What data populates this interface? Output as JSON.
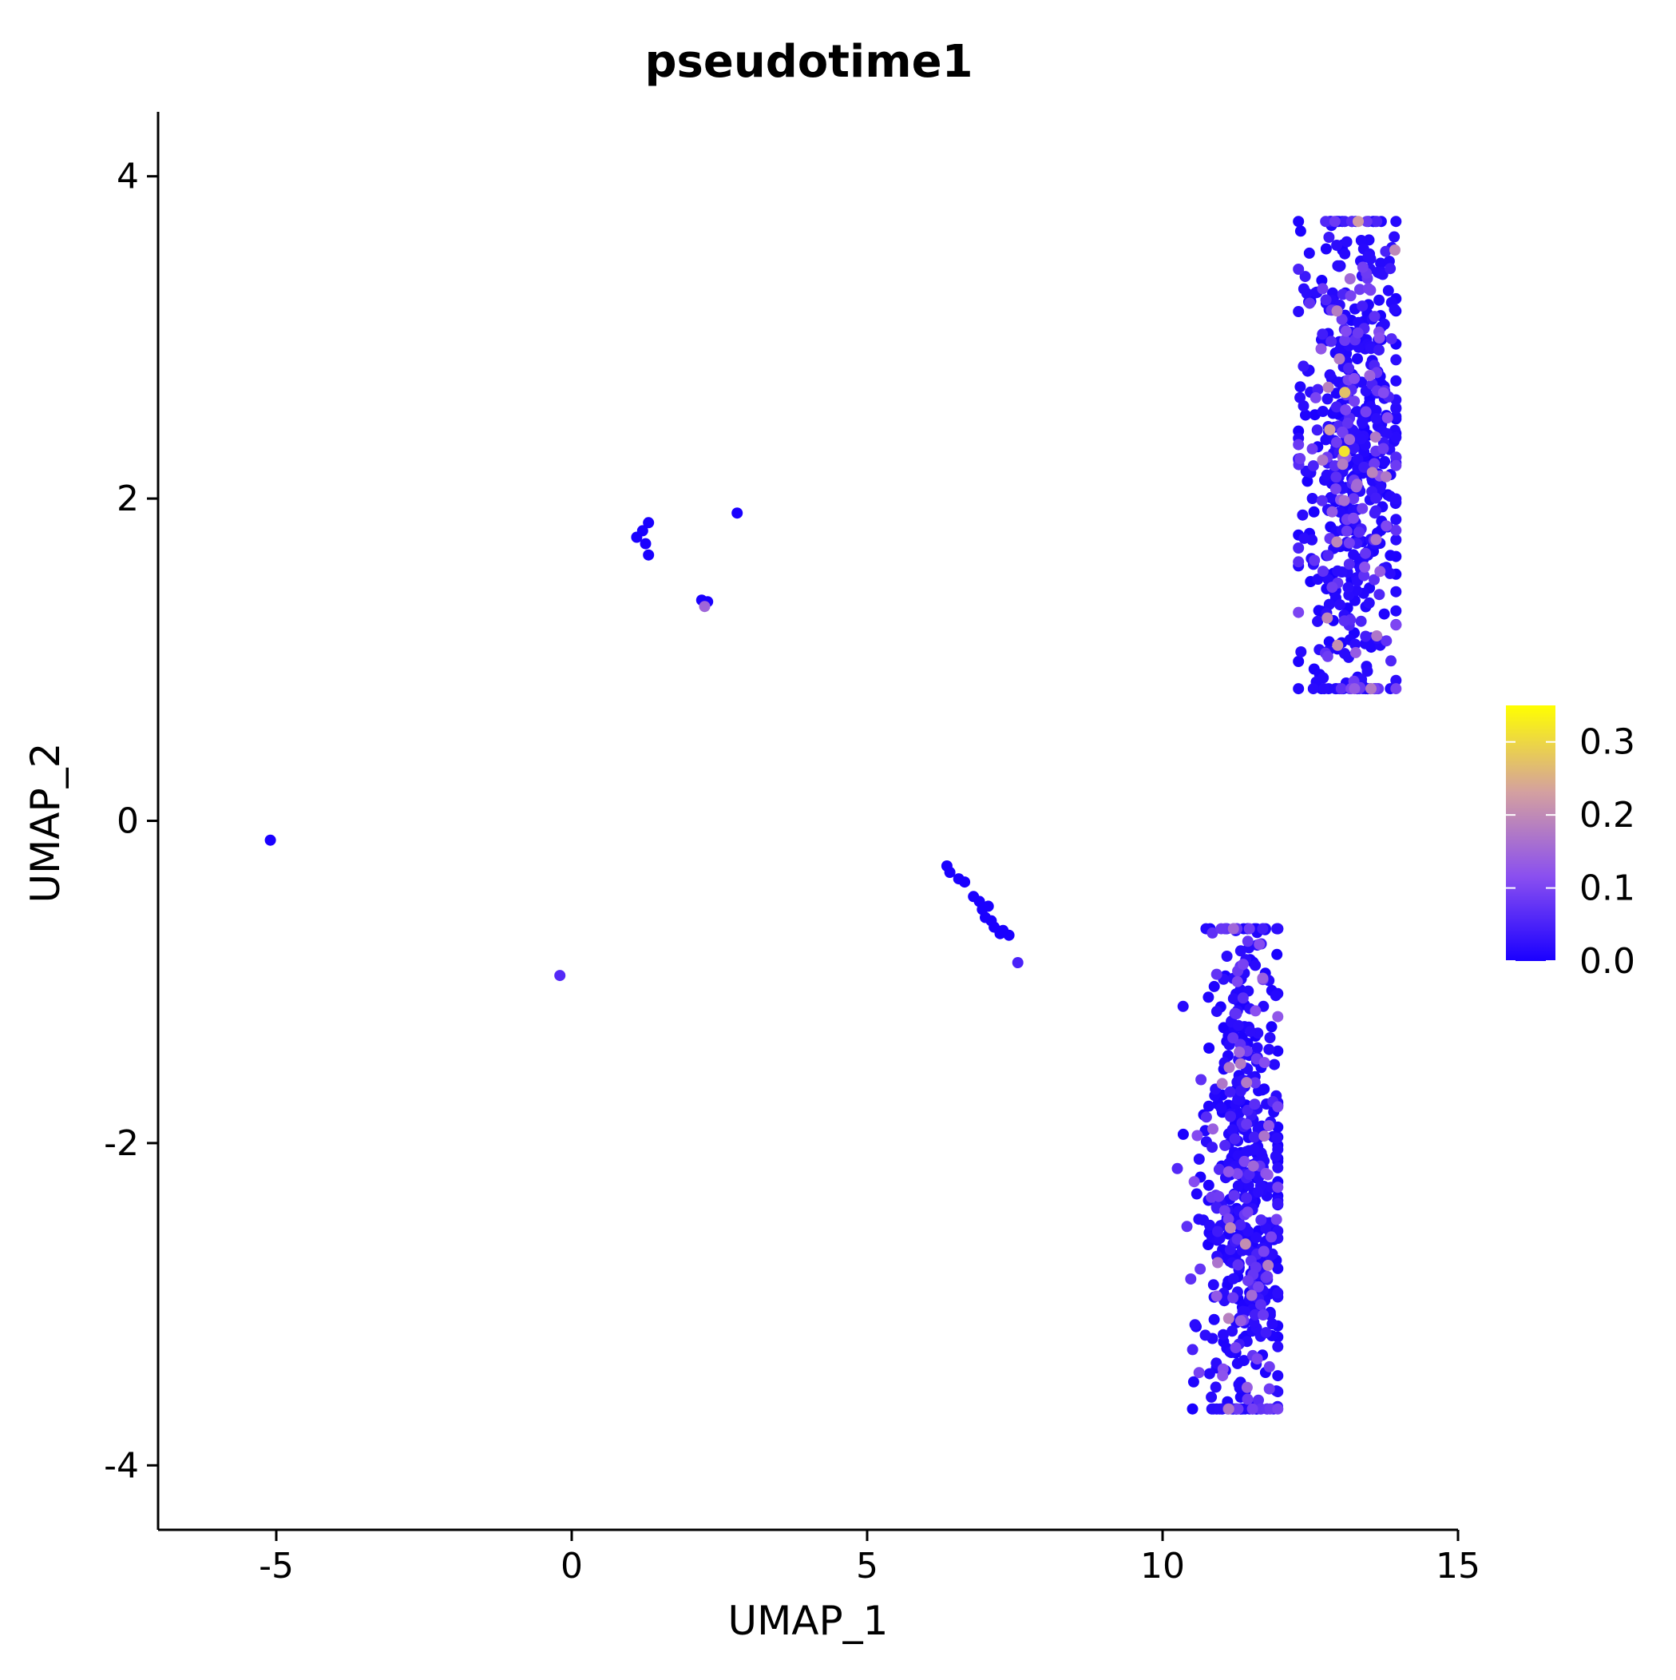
{
  "chart_data": {
    "type": "scatter",
    "title": "pseudotime1",
    "xlabel": "UMAP_1",
    "ylabel": "UMAP_2",
    "xlim": [
      -7,
      15
    ],
    "ylim": [
      -4.4,
      4.4
    ],
    "x_ticks": [
      -5,
      0,
      5,
      10,
      15
    ],
    "y_ticks": [
      -4,
      -2,
      0,
      2,
      4
    ],
    "x_tick_labels": [
      "-5",
      "0",
      "5",
      "10",
      "15"
    ],
    "y_tick_labels": [
      "-4",
      "-2",
      "0",
      "2",
      "4"
    ],
    "grid": false,
    "legend_position": "right",
    "colorbar": {
      "min": 0.0,
      "max": 0.35,
      "ticks": [
        0.0,
        0.1,
        0.2,
        0.3
      ],
      "tick_labels": [
        "0.0",
        "0.1",
        "0.2",
        "0.3"
      ],
      "colors": [
        "#1a00ff",
        "#8a4ff0",
        "#d4a0a0",
        "#ffff00"
      ]
    },
    "points": [
      {
        "x": -5.1,
        "y": -0.12,
        "v": 0.0
      },
      {
        "x": -0.2,
        "y": -0.96,
        "v": 0.06
      },
      {
        "x": 1.1,
        "y": 1.76,
        "v": 0.0
      },
      {
        "x": 1.2,
        "y": 1.8,
        "v": 0.0
      },
      {
        "x": 1.3,
        "y": 1.85,
        "v": 0.0
      },
      {
        "x": 1.25,
        "y": 1.72,
        "v": 0.0
      },
      {
        "x": 1.3,
        "y": 1.65,
        "v": 0.0
      },
      {
        "x": 2.2,
        "y": 1.37,
        "v": 0.0
      },
      {
        "x": 2.3,
        "y": 1.36,
        "v": 0.0
      },
      {
        "x": 2.25,
        "y": 1.33,
        "v": 0.15
      },
      {
        "x": 2.8,
        "y": 1.91,
        "v": 0.0
      },
      {
        "x": 6.35,
        "y": -0.28,
        "v": 0.0
      },
      {
        "x": 6.4,
        "y": -0.32,
        "v": 0.0
      },
      {
        "x": 6.55,
        "y": -0.36,
        "v": 0.0
      },
      {
        "x": 6.65,
        "y": -0.38,
        "v": 0.0
      },
      {
        "x": 6.8,
        "y": -0.47,
        "v": 0.0
      },
      {
        "x": 6.9,
        "y": -0.5,
        "v": 0.0
      },
      {
        "x": 6.95,
        "y": -0.55,
        "v": 0.0
      },
      {
        "x": 7.05,
        "y": -0.53,
        "v": 0.0
      },
      {
        "x": 7.0,
        "y": -0.6,
        "v": 0.0
      },
      {
        "x": 7.1,
        "y": -0.62,
        "v": 0.0
      },
      {
        "x": 7.15,
        "y": -0.66,
        "v": 0.0
      },
      {
        "x": 7.25,
        "y": -0.7,
        "v": 0.0
      },
      {
        "x": 7.3,
        "y": -0.68,
        "v": 0.0
      },
      {
        "x": 7.4,
        "y": -0.71,
        "v": 0.0
      },
      {
        "x": 7.55,
        "y": -0.88,
        "v": 0.05
      }
    ],
    "clusters": [
      {
        "name_hidden": "upper-right",
        "center": [
          13.2,
          2.3
        ],
        "spread": [
          0.45,
          0.85
        ],
        "y_range": [
          0.82,
          3.72
        ],
        "x_range": [
          12.3,
          13.95
        ],
        "count": 620
      },
      {
        "name_hidden": "lower-right",
        "center": [
          11.4,
          -2.3
        ],
        "spread": [
          0.35,
          0.9
        ],
        "y_range": [
          -3.65,
          -0.67
        ],
        "x_range": [
          10.25,
          11.95
        ],
        "count": 560
      }
    ]
  }
}
